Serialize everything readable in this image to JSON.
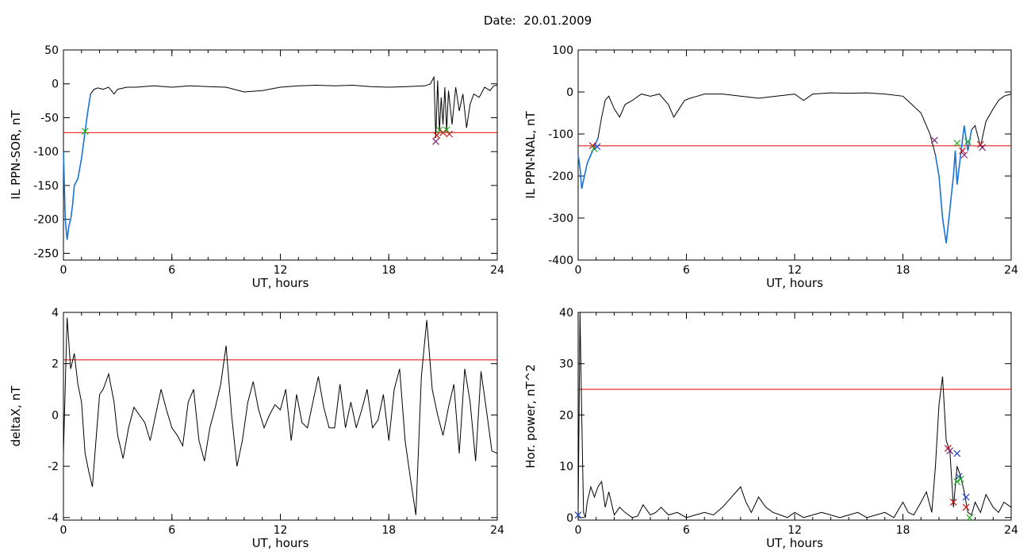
{
  "figure_title": "Date:  20.01.2009",
  "colors": {
    "trace": "#000000",
    "threshold": "#e00000",
    "highlight": "#1a73d9",
    "marker_red": "#d01010",
    "marker_blue": "#2040d0",
    "marker_green": "#20b020",
    "marker_purple": "#7a2a7a"
  },
  "chart_data": [
    {
      "id": "sor",
      "type": "line",
      "xlabel": "UT, hours",
      "ylabel": "IL PPN-SOR, nT",
      "xlim": [
        0,
        24
      ],
      "ylim": [
        -260,
        50
      ],
      "xticks": [
        "0",
        "6",
        "12",
        "18",
        "24"
      ],
      "yticks": [
        "50",
        "0",
        "-50",
        "-100",
        "-150",
        "-200",
        "-250"
      ],
      "threshold": -72,
      "series": [
        {
          "values_x": [
            0,
            0.1,
            0.2,
            0.3,
            0.4,
            0.5,
            0.6,
            0.8,
            1.0,
            1.2,
            1.35,
            1.5,
            1.7,
            1.9,
            2.2,
            2.5,
            2.8,
            3.0,
            3.5,
            4.0,
            5.0,
            6.0,
            7.0,
            8.0,
            9.0,
            10.0,
            11.0,
            12.0,
            13.0,
            14.0,
            15.0,
            16.0,
            17.0,
            18.0,
            19.0,
            20.0,
            20.3,
            20.5,
            20.6,
            20.7,
            20.8,
            20.9,
            21.0,
            21.1,
            21.2,
            21.3,
            21.5,
            21.7,
            21.9,
            22.1,
            22.3,
            22.5,
            22.7,
            23.0,
            23.3,
            23.6,
            23.8,
            24.0
          ]
        },
        {
          "values_y": [
            -100,
            -200,
            -230,
            -210,
            -200,
            -180,
            -150,
            -140,
            -110,
            -70,
            -40,
            -15,
            -8,
            -6,
            -8,
            -5,
            -15,
            -8,
            -5,
            -5,
            -3,
            -5,
            -3,
            -4,
            -5,
            -12,
            -10,
            -5,
            -3,
            -2,
            -3,
            -2,
            -4,
            -5,
            -4,
            -3,
            0,
            10,
            -80,
            5,
            -70,
            -20,
            -60,
            -5,
            -70,
            -10,
            -60,
            -5,
            -40,
            -15,
            -65,
            -30,
            -15,
            -20,
            -5,
            -10,
            -3,
            -2
          ]
        }
      ],
      "highlight_x": [
        0,
        1.5
      ],
      "markers": [
        {
          "x": 1.2,
          "y": -70,
          "color": "marker_green"
        },
        {
          "x": 20.6,
          "y": -85,
          "color": "marker_purple"
        },
        {
          "x": 20.65,
          "y": -76,
          "color": "marker_red"
        },
        {
          "x": 20.8,
          "y": -68,
          "color": "marker_green"
        },
        {
          "x": 21.0,
          "y": -72,
          "color": "marker_red"
        },
        {
          "x": 21.2,
          "y": -68,
          "color": "marker_green"
        },
        {
          "x": 21.35,
          "y": -74,
          "color": "marker_red"
        }
      ]
    },
    {
      "id": "nal",
      "type": "line",
      "xlabel": "UT, hours",
      "ylabel": "IL PPN-NAL, nT",
      "xlim": [
        0,
        24
      ],
      "ylim": [
        -400,
        100
      ],
      "xticks": [
        "0",
        "6",
        "12",
        "18",
        "24"
      ],
      "yticks": [
        "100",
        "0",
        "-100",
        "-200",
        "-300",
        "-400"
      ],
      "threshold": -128,
      "series": [
        {
          "values_x": [
            0,
            0.1,
            0.2,
            0.3,
            0.5,
            0.7,
            0.9,
            1.1,
            1.3,
            1.5,
            1.7,
            2.0,
            2.3,
            2.6,
            3.0,
            3.5,
            4.0,
            4.5,
            5.0,
            5.3,
            5.6,
            5.9,
            6.2,
            6.6,
            7.0,
            8.0,
            9.0,
            10.0,
            11.0,
            12.0,
            12.5,
            13.0,
            14.0,
            15.0,
            16.0,
            17.0,
            18.0,
            19.0,
            19.5,
            19.8,
            20.0,
            20.2,
            20.4,
            20.6,
            20.7,
            20.8,
            20.9,
            21.0,
            21.2,
            21.4,
            21.6,
            21.8,
            22.0,
            22.3,
            22.6,
            23.0,
            23.3,
            23.6,
            24.0
          ]
        },
        {
          "values_y": [
            -150,
            -180,
            -230,
            -210,
            -170,
            -150,
            -130,
            -110,
            -60,
            -20,
            -10,
            -40,
            -60,
            -30,
            -20,
            -5,
            -10,
            -5,
            -30,
            -60,
            -40,
            -20,
            -15,
            -10,
            -5,
            -5,
            -10,
            -15,
            -10,
            -5,
            -20,
            -5,
            -2,
            -3,
            -2,
            -5,
            -10,
            -50,
            -100,
            -150,
            -200,
            -300,
            -360,
            -280,
            -240,
            -200,
            -140,
            -220,
            -150,
            -80,
            -140,
            -90,
            -80,
            -130,
            -70,
            -40,
            -20,
            -10,
            -5
          ]
        }
      ],
      "highlight_x": [
        0,
        1.2
      ],
      "highlight_x2": [
        19.8,
        21.8
      ],
      "markers": [
        {
          "x": 0.8,
          "y": -128,
          "color": "marker_red"
        },
        {
          "x": 0.9,
          "y": -135,
          "color": "marker_green"
        },
        {
          "x": 1.05,
          "y": -130,
          "color": "marker_blue"
        },
        {
          "x": 19.75,
          "y": -115,
          "color": "marker_purple"
        },
        {
          "x": 21.0,
          "y": -122,
          "color": "marker_green"
        },
        {
          "x": 21.3,
          "y": -140,
          "color": "marker_red"
        },
        {
          "x": 21.4,
          "y": -150,
          "color": "marker_purple"
        },
        {
          "x": 21.6,
          "y": -118,
          "color": "marker_green"
        },
        {
          "x": 22.3,
          "y": -125,
          "color": "marker_red"
        },
        {
          "x": 22.4,
          "y": -132,
          "color": "marker_purple"
        }
      ]
    },
    {
      "id": "deltax",
      "type": "line",
      "xlabel": "UT, hours",
      "ylabel": "deltaX, nT",
      "xlim": [
        0,
        24
      ],
      "ylim": [
        -4.1,
        4
      ],
      "xticks": [
        "0",
        "6",
        "12",
        "18",
        "24"
      ],
      "yticks": [
        "4",
        "2",
        "0",
        "-2",
        "-4"
      ],
      "threshold": 2.15,
      "series": [
        {
          "values_x": [
            0,
            0.2,
            0.4,
            0.6,
            0.8,
            1.0,
            1.2,
            1.4,
            1.6,
            1.8,
            2.0,
            2.2,
            2.5,
            2.8,
            3.0,
            3.3,
            3.6,
            3.9,
            4.2,
            4.5,
            4.8,
            5.1,
            5.4,
            5.7,
            6.0,
            6.3,
            6.6,
            6.9,
            7.2,
            7.5,
            7.8,
            8.1,
            8.4,
            8.7,
            9.0,
            9.3,
            9.6,
            9.9,
            10.2,
            10.5,
            10.8,
            11.1,
            11.4,
            11.7,
            12.0,
            12.3,
            12.6,
            12.9,
            13.2,
            13.5,
            13.8,
            14.1,
            14.4,
            14.7,
            15.0,
            15.3,
            15.6,
            15.9,
            16.2,
            16.5,
            16.8,
            17.1,
            17.4,
            17.7,
            18.0,
            18.3,
            18.6,
            18.9,
            19.2,
            19.5,
            19.8,
            20.1,
            20.4,
            20.7,
            21.0,
            21.3,
            21.6,
            21.9,
            22.2,
            22.5,
            22.8,
            23.1,
            23.4,
            23.7,
            24.0
          ]
        },
        {
          "values_y": [
            -1.5,
            3.8,
            1.8,
            2.4,
            1.2,
            0.5,
            -1.5,
            -2.2,
            -2.8,
            -1.0,
            0.8,
            1.0,
            1.6,
            0.5,
            -0.8,
            -1.7,
            -0.5,
            0.3,
            0.0,
            -0.3,
            -1.0,
            0.0,
            1.0,
            0.2,
            -0.5,
            -0.8,
            -1.2,
            0.5,
            1.0,
            -1.0,
            -1.8,
            -0.5,
            0.3,
            1.2,
            2.7,
            0.0,
            -2.0,
            -1.0,
            0.5,
            1.3,
            0.2,
            -0.5,
            0.0,
            0.4,
            0.2,
            1.0,
            -1.0,
            0.8,
            -0.3,
            -0.5,
            0.5,
            1.5,
            0.3,
            -0.5,
            -0.5,
            1.2,
            -0.5,
            0.5,
            -0.5,
            0.2,
            1.0,
            -0.5,
            -0.2,
            0.8,
            -1.0,
            1.0,
            1.8,
            -1.0,
            -2.5,
            -3.9,
            1.5,
            3.7,
            1.0,
            0.0,
            -0.8,
            0.3,
            1.2,
            -1.5,
            1.8,
            0.5,
            -1.8,
            1.7,
            0.2,
            -1.4,
            -1.5
          ]
        }
      ]
    },
    {
      "id": "horpower",
      "type": "line",
      "xlabel": "UT, hours",
      "ylabel": "Hor. power, nT^2",
      "xlim": [
        0,
        24
      ],
      "ylim": [
        -0.5,
        40
      ],
      "xticks": [
        "0",
        "6",
        "12",
        "18",
        "24"
      ],
      "yticks": [
        "40",
        "30",
        "20",
        "10",
        "0"
      ],
      "threshold": 25,
      "series": [
        {
          "values_x": [
            0,
            0.1,
            0.2,
            0.3,
            0.4,
            0.5,
            0.7,
            0.9,
            1.1,
            1.3,
            1.5,
            1.7,
            2.0,
            2.3,
            2.6,
            3.0,
            3.3,
            3.6,
            4.0,
            4.3,
            4.6,
            5.0,
            5.5,
            6.0,
            6.5,
            7.0,
            7.5,
            8.0,
            8.5,
            9.0,
            9.3,
            9.6,
            10.0,
            10.4,
            10.8,
            11.2,
            11.6,
            12.0,
            12.5,
            13.0,
            13.5,
            14.0,
            14.5,
            15.0,
            15.5,
            16.0,
            16.5,
            17.0,
            17.5,
            18.0,
            18.3,
            18.6,
            19.0,
            19.3,
            19.6,
            19.8,
            20.0,
            20.2,
            20.4,
            20.6,
            20.8,
            21.0,
            21.2,
            21.4,
            21.6,
            21.8,
            22.0,
            22.3,
            22.6,
            23.0,
            23.3,
            23.6,
            24.0
          ]
        },
        {
          "values_y": [
            0.5,
            40,
            20,
            1,
            0,
            3,
            6,
            4,
            6,
            7,
            2,
            5,
            0.5,
            2,
            1,
            0,
            0.3,
            2.5,
            0.5,
            1,
            2,
            0.5,
            1,
            0,
            0.5,
            1,
            0.5,
            2,
            4,
            6,
            3,
            1,
            4,
            2,
            1,
            0.5,
            0,
            1,
            0,
            0.5,
            1,
            0.5,
            0,
            0.5,
            1,
            0,
            0.5,
            1,
            0,
            3,
            1,
            0.5,
            3,
            5,
            1,
            10,
            22,
            27.5,
            15,
            13,
            2,
            10,
            8,
            5,
            1,
            0.5,
            3,
            1,
            4.5,
            2,
            1,
            3,
            2
          ]
        }
      ],
      "markers": [
        {
          "x": 0.0,
          "y": 0.5,
          "color": "marker_blue"
        },
        {
          "x": 20.5,
          "y": 13.5,
          "color": "marker_red"
        },
        {
          "x": 20.6,
          "y": 13,
          "color": "marker_purple"
        },
        {
          "x": 20.8,
          "y": 3,
          "color": "marker_red"
        },
        {
          "x": 21.0,
          "y": 12.5,
          "color": "marker_blue"
        },
        {
          "x": 21.1,
          "y": 8,
          "color": "marker_blue"
        },
        {
          "x": 21.0,
          "y": 7,
          "color": "marker_green"
        },
        {
          "x": 21.2,
          "y": 7.5,
          "color": "marker_green"
        },
        {
          "x": 21.5,
          "y": 4,
          "color": "marker_blue"
        },
        {
          "x": 21.5,
          "y": 2,
          "color": "marker_red"
        },
        {
          "x": 21.7,
          "y": 0,
          "color": "marker_green"
        }
      ]
    }
  ]
}
